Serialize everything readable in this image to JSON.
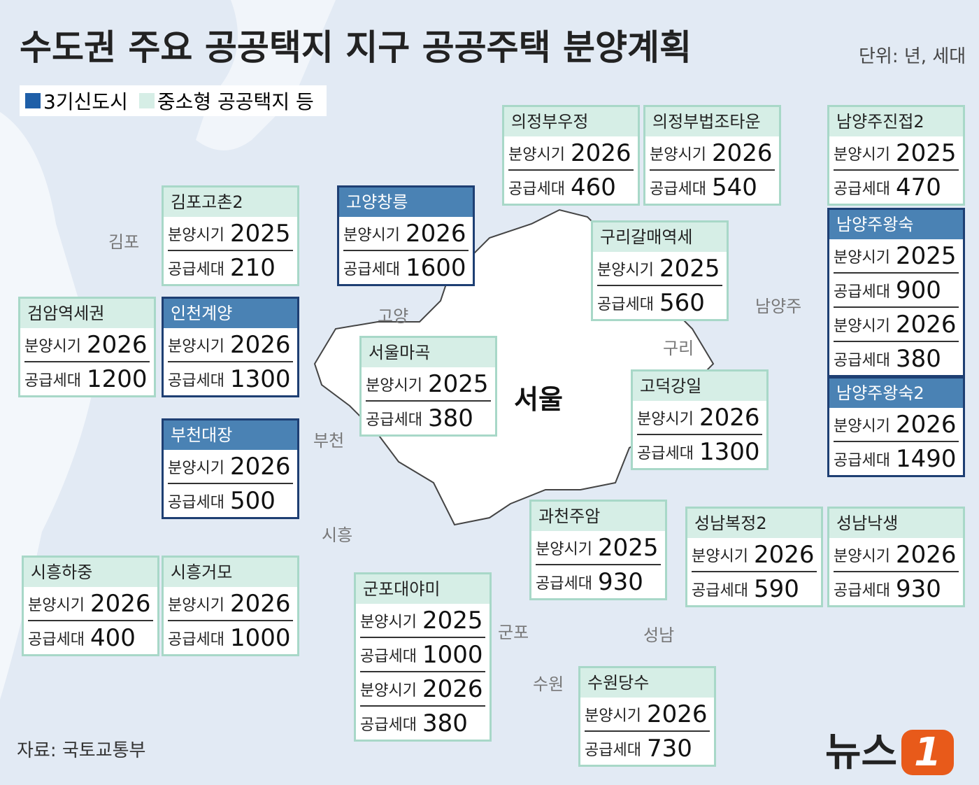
{
  "header": {
    "title": "수도권 주요 공공택지 지구 공공주택 분양계획",
    "unit": "단위: 년, 세대"
  },
  "legend": [
    {
      "label": "3기신도시",
      "color": "#1f5fa8"
    },
    {
      "label": "중소형 공공택지 등",
      "color": "#d6eee6"
    }
  ],
  "places": [
    "김포",
    "고양",
    "부천",
    "시흥",
    "군포",
    "수원",
    "성남",
    "구리",
    "남양주",
    "서울"
  ],
  "boxes": [
    {
      "name": "의정부우정",
      "color": "#d6eee6",
      "rows": [
        {
          "label": "분양시기",
          "value": 2026
        },
        {
          "label": "공급세대",
          "value": 460
        }
      ]
    },
    {
      "name": "의정부법조타운",
      "color": "#d6eee6",
      "rows": [
        {
          "label": "분양시기",
          "value": 2026
        },
        {
          "label": "공급세대",
          "value": 540
        }
      ]
    },
    {
      "name": "남양주진접2",
      "color": "#d6eee6",
      "rows": [
        {
          "label": "분양시기",
          "value": 2025
        },
        {
          "label": "공급세대",
          "value": 470
        }
      ]
    },
    {
      "name": "남양주왕숙",
      "color": "#4a82b4",
      "rows": [
        {
          "label": "분양시기",
          "value": 2025
        },
        {
          "label": "공급세대",
          "value": 900
        },
        {
          "label": "분양시기",
          "value": 2026
        },
        {
          "label": "공급세대",
          "value": 380
        }
      ]
    },
    {
      "name": "남양주왕숙2",
      "color": "#4a82b4",
      "rows": [
        {
          "label": "분양시기",
          "value": 2026
        },
        {
          "label": "공급세대",
          "value": 1490
        }
      ]
    },
    {
      "name": "김포고촌2",
      "color": "#d6eee6",
      "rows": [
        {
          "label": "분양시기",
          "value": 2025
        },
        {
          "label": "공급세대",
          "value": 210
        }
      ]
    },
    {
      "name": "고양창릉",
      "color": "#4a82b4",
      "rows": [
        {
          "label": "분양시기",
          "value": 2026
        },
        {
          "label": "공급세대",
          "value": 1600
        }
      ]
    },
    {
      "name": "구리갈매역세",
      "color": "#d6eee6",
      "rows": [
        {
          "label": "분양시기",
          "value": 2025
        },
        {
          "label": "공급세대",
          "value": 560
        }
      ]
    },
    {
      "name": "검암역세권",
      "color": "#d6eee6",
      "rows": [
        {
          "label": "분양시기",
          "value": 2026
        },
        {
          "label": "공급세대",
          "value": 1200
        }
      ]
    },
    {
      "name": "인천계양",
      "color": "#4a82b4",
      "rows": [
        {
          "label": "분양시기",
          "value": 2026
        },
        {
          "label": "공급세대",
          "value": 1300
        }
      ]
    },
    {
      "name": "서울마곡",
      "color": "#d6eee6",
      "rows": [
        {
          "label": "분양시기",
          "value": 2025
        },
        {
          "label": "공급세대",
          "value": 380
        }
      ]
    },
    {
      "name": "고덕강일",
      "color": "#d6eee6",
      "rows": [
        {
          "label": "분양시기",
          "value": 2026
        },
        {
          "label": "공급세대",
          "value": 1300
        }
      ]
    },
    {
      "name": "부천대장",
      "color": "#4a82b4",
      "rows": [
        {
          "label": "분양시기",
          "value": 2026
        },
        {
          "label": "공급세대",
          "value": 500
        }
      ]
    },
    {
      "name": "과천주암",
      "color": "#d6eee6",
      "rows": [
        {
          "label": "분양시기",
          "value": 2025
        },
        {
          "label": "공급세대",
          "value": 930
        }
      ]
    },
    {
      "name": "성남복정2",
      "color": "#d6eee6",
      "rows": [
        {
          "label": "분양시기",
          "value": 2026
        },
        {
          "label": "공급세대",
          "value": 590
        }
      ]
    },
    {
      "name": "성남낙생",
      "color": "#d6eee6",
      "rows": [
        {
          "label": "분양시기",
          "value": 2026
        },
        {
          "label": "공급세대",
          "value": 930
        }
      ]
    },
    {
      "name": "시흥하중",
      "color": "#d6eee6",
      "rows": [
        {
          "label": "분양시기",
          "value": 2026
        },
        {
          "label": "공급세대",
          "value": 400
        }
      ]
    },
    {
      "name": "시흥거모",
      "color": "#d6eee6",
      "rows": [
        {
          "label": "분양시기",
          "value": 2026
        },
        {
          "label": "공급세대",
          "value": 1000
        }
      ]
    },
    {
      "name": "군포대야미",
      "color": "#d6eee6",
      "rows": [
        {
          "label": "분양시기",
          "value": 2025
        },
        {
          "label": "공급세대",
          "value": 1000
        },
        {
          "label": "분양시기",
          "value": 2026
        },
        {
          "label": "공급세대",
          "value": 380
        }
      ]
    },
    {
      "name": "수원당수",
      "color": "#d6eee6",
      "rows": [
        {
          "label": "분양시기",
          "value": 2026
        },
        {
          "label": "공급세대",
          "value": 730
        }
      ]
    }
  ],
  "footer": {
    "source": "자료: 국토교통부",
    "logo": "뉴스",
    "logo_mark": "1"
  }
}
